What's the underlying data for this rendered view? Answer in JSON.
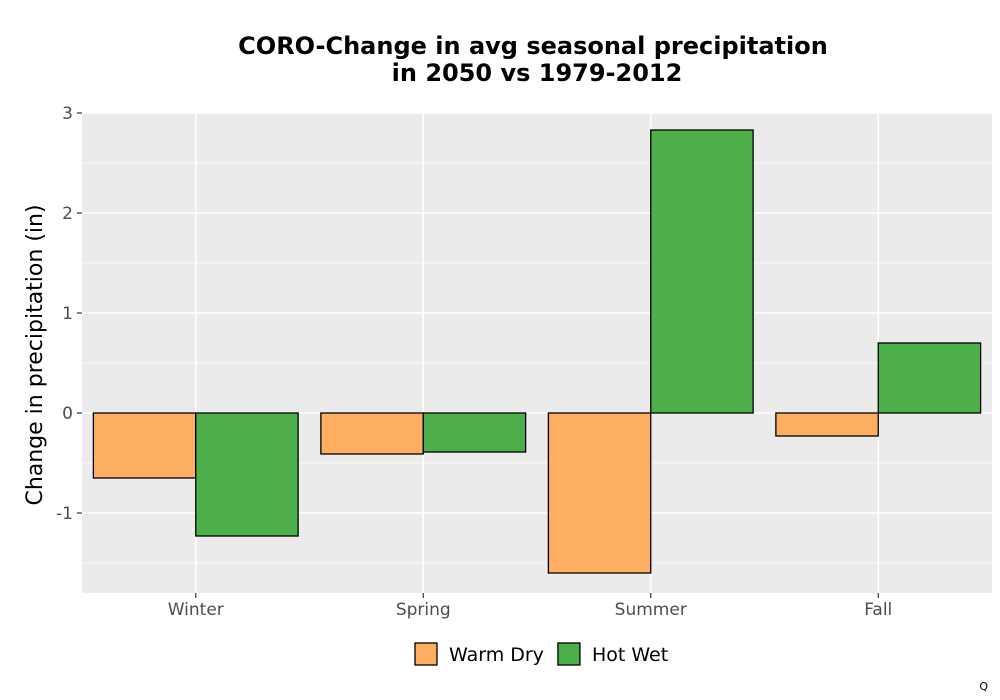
{
  "chart_data": {
    "type": "bar",
    "title_lines": [
      "CORO-Change in avg seasonal precipitation",
      "in 2050 vs 1979-2012"
    ],
    "xlabel": "",
    "ylabel": "Change in precipitation (in)",
    "categories": [
      "Winter",
      "Spring",
      "Summer",
      "Fall"
    ],
    "series": [
      {
        "name": "Warm Dry",
        "color": "#fdae61",
        "values": [
          -0.65,
          -0.41,
          -1.6,
          -0.23
        ]
      },
      {
        "name": "Hot Wet",
        "color": "#4daf4a",
        "values": [
          -1.23,
          -0.39,
          2.83,
          0.7
        ]
      }
    ],
    "ylim": [
      -1.8,
      3.0
    ],
    "yticks": [
      -1,
      0,
      1,
      2,
      3
    ],
    "ytick_labels": [
      "-1",
      "0",
      "1",
      "2",
      "3"
    ],
    "grid": true,
    "legend_position": "bottom",
    "panel_background": "#ebebeb"
  },
  "corner_mark": "Q"
}
